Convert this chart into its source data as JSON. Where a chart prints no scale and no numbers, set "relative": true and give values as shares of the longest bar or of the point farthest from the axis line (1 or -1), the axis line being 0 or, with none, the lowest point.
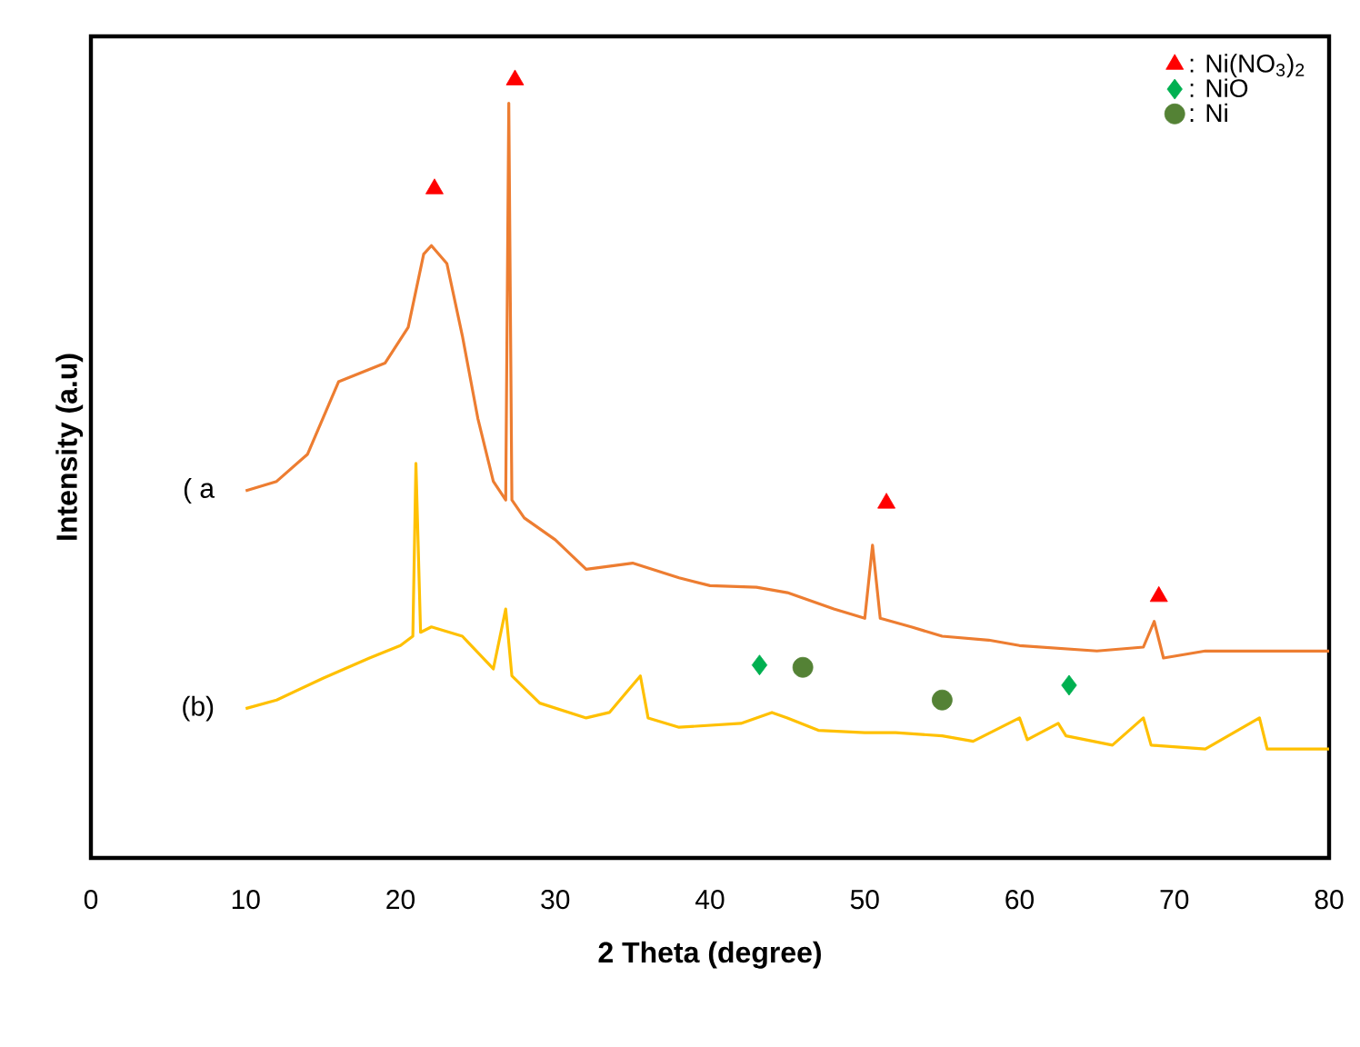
{
  "chart_data": {
    "type": "line",
    "relative": true,
    "xlabel": "2 Theta (degree)",
    "ylabel": "Intensity (a.u)",
    "xlim": [
      0,
      80
    ],
    "xticks": [
      0,
      10,
      20,
      30,
      40,
      50,
      60,
      70,
      80
    ],
    "tick_labels": "x",
    "grid": false,
    "legend": "top right",
    "annotations": [
      "( a",
      "(b)"
    ],
    "series": [
      {
        "color": "#ed7d31",
        "marker": "none",
        "x": [
          10,
          12,
          14,
          16,
          17.5,
          19,
          20.5,
          21.5,
          22,
          23,
          24,
          25,
          26,
          26.8,
          27,
          27.2,
          28,
          30,
          32,
          35,
          38,
          40,
          43,
          45,
          48,
          50,
          50.5,
          51,
          53,
          55,
          58,
          60,
          65,
          68,
          68.7,
          69.3,
          72,
          75,
          80
        ],
        "values": [
          0.472,
          0.484,
          0.519,
          0.612,
          0.624,
          0.636,
          0.682,
          0.776,
          0.787,
          0.764,
          0.671,
          0.565,
          0.484,
          0.46,
          0.97,
          0.46,
          0.437,
          0.409,
          0.371,
          0.379,
          0.36,
          0.35,
          0.348,
          0.341,
          0.32,
          0.308,
          0.402,
          0.308,
          0.297,
          0.285,
          0.28,
          0.273,
          0.266,
          0.271,
          0.304,
          0.257,
          0.266,
          0.266,
          0.266
        ]
      },
      {
        "color": "#ffc000",
        "marker": "none",
        "x": [
          10,
          12,
          15,
          18,
          20,
          20.8,
          21,
          21.3,
          22,
          24,
          26,
          26.8,
          27.2,
          29,
          32,
          33.5,
          35.5,
          36,
          38,
          42,
          44,
          45,
          47,
          50,
          52,
          55,
          57,
          60,
          60.5,
          62.5,
          63,
          66,
          68,
          68.5,
          72,
          75.5,
          76,
          80
        ],
        "values": [
          0.192,
          0.203,
          0.231,
          0.257,
          0.273,
          0.285,
          0.507,
          0.29,
          0.297,
          0.285,
          0.243,
          0.32,
          0.234,
          0.199,
          0.18,
          0.187,
          0.234,
          0.18,
          0.168,
          0.173,
          0.187,
          0.18,
          0.164,
          0.161,
          0.161,
          0.157,
          0.15,
          0.18,
          0.152,
          0.173,
          0.157,
          0.145,
          0.18,
          0.145,
          0.14,
          0.18,
          0.14,
          0.14
        ]
      },
      {
        "type": "scatter",
        "name": ": Ni(NO$_{3}$)$_{2}$",
        "color": "#ff0000",
        "marker": "triangle",
        "x": [
          22.2,
          27.4,
          51.4,
          69.0
        ],
        "values": [
          0.86,
          1.0,
          0.456,
          0.336
        ]
      },
      {
        "type": "scatter",
        "name": ": NiO",
        "color": "#00b050",
        "marker": "diamond",
        "x": [
          43.2,
          63.2
        ],
        "values": [
          0.248,
          0.222
        ]
      },
      {
        "type": "scatter",
        "name": ": Ni",
        "color": "#548235",
        "marker": "circle",
        "x": [
          46.0,
          55.0
        ],
        "values": [
          0.245,
          0.203
        ]
      }
    ]
  }
}
